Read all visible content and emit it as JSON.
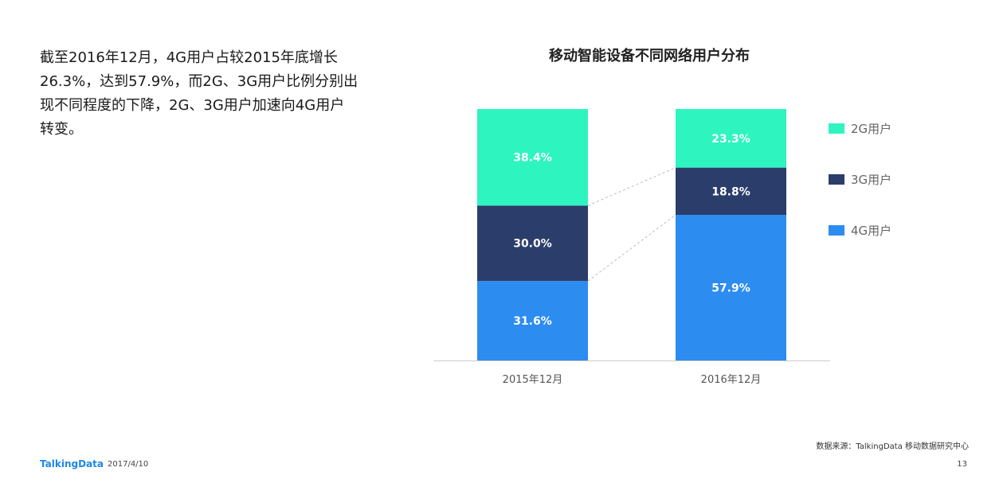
{
  "description": "截至2016年12月，4G用户占较2015年底增长26.3%，达到57.9%，而2G、3G用户比例分别出现不同程度的下降，2G、3G用户加速向4G用户转变。",
  "chart_data": {
    "type": "bar",
    "stacked": true,
    "title": "移动智能设备不同网络用户分布",
    "categories": [
      "2015年12月",
      "2016年12月"
    ],
    "series": [
      {
        "name": "4G用户",
        "values": [
          31.6,
          57.9
        ],
        "labels": [
          "31.6%",
          "57.9%"
        ],
        "color": "#2d8cf0"
      },
      {
        "name": "3G用户",
        "values": [
          30.0,
          18.8
        ],
        "labels": [
          "30.0%",
          "18.8%"
        ],
        "color": "#2b3d6b"
      },
      {
        "name": "2G用户",
        "values": [
          38.4,
          23.3
        ],
        "labels": [
          "38.4%",
          "23.3%"
        ],
        "color": "#2ef5c0"
      }
    ],
    "ylim": [
      0,
      100
    ],
    "legend_position": "right",
    "grid": false
  },
  "legend_order": [
    "2G用户",
    "3G用户",
    "4G用户"
  ],
  "source": "数据来源：TalkingData 移动数据研究中心",
  "footer": {
    "logo": "TalkingData",
    "date": "2017/4/10",
    "page": "13"
  }
}
